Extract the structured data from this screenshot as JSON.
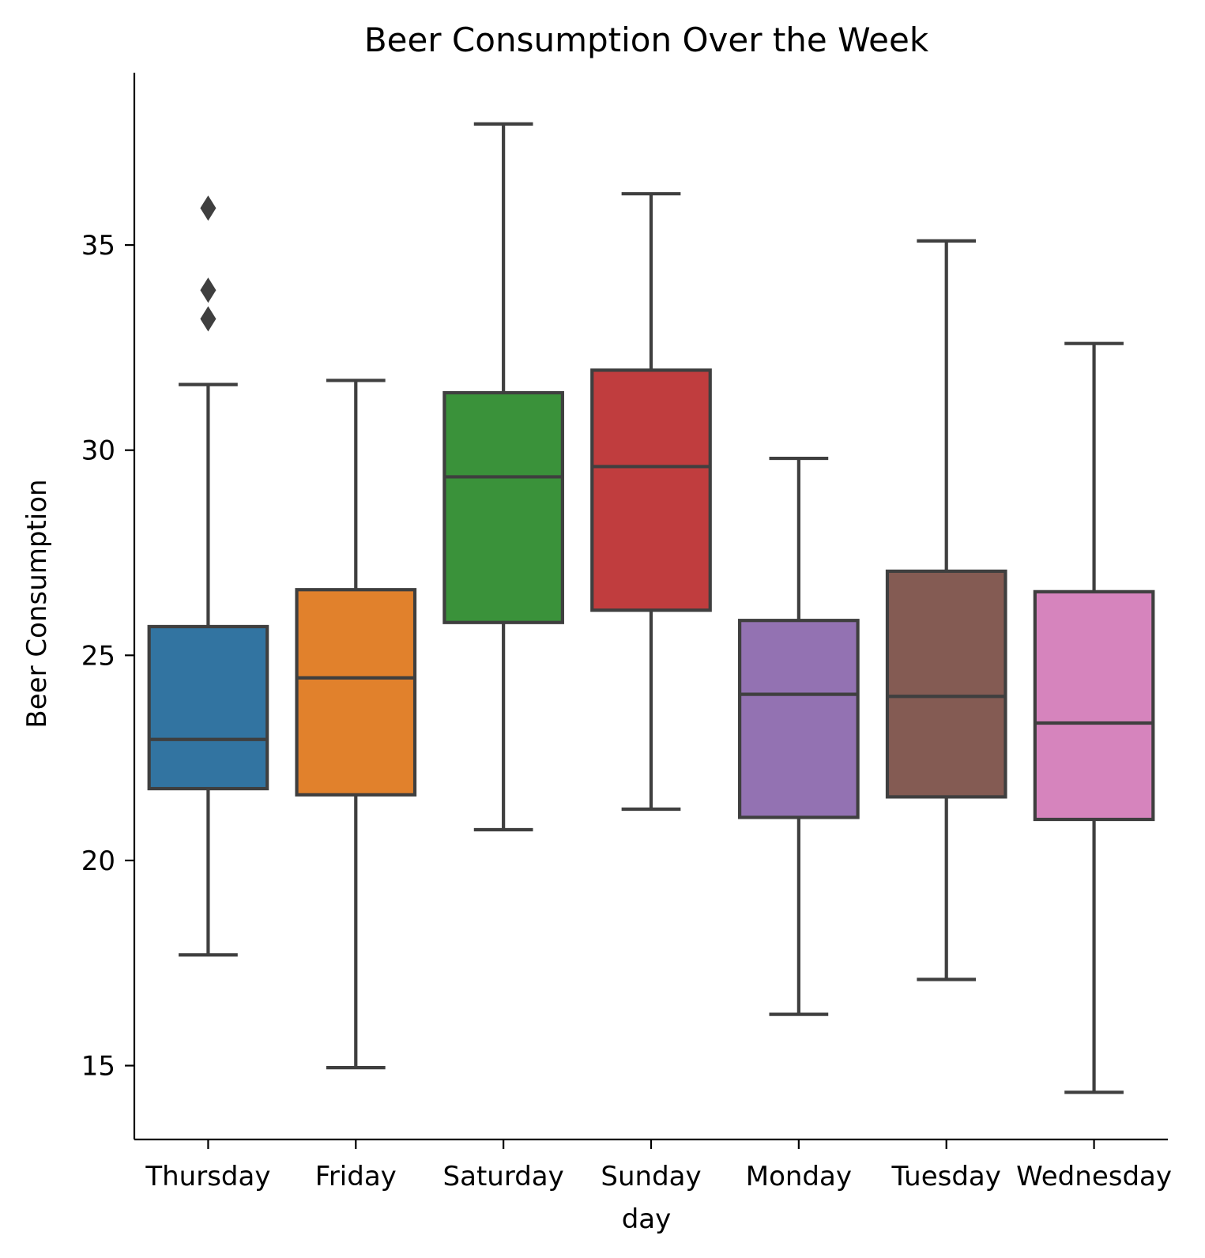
{
  "chart_data": {
    "type": "box",
    "title": "Beer Consumption Over the Week",
    "xlabel": "day",
    "ylabel": "Beer Consumption",
    "ylim": [
      13.2,
      39.2
    ],
    "yticks": [
      15,
      20,
      25,
      30,
      35
    ],
    "grid": false,
    "line_color": "#3f3f3f",
    "categories": [
      "Thursday",
      "Friday",
      "Saturday",
      "Sunday",
      "Monday",
      "Tuesday",
      "Wednesday"
    ],
    "boxes": [
      {
        "category": "Thursday",
        "color": "#3274a1",
        "whisker_low": 17.7,
        "q1": 21.75,
        "median": 22.95,
        "q3": 25.7,
        "whisker_high": 31.6,
        "outliers": [
          33.2,
          33.9,
          35.9
        ]
      },
      {
        "category": "Friday",
        "color": "#e1812c",
        "whisker_low": 14.95,
        "q1": 21.6,
        "median": 24.45,
        "q3": 26.6,
        "whisker_high": 31.7,
        "outliers": []
      },
      {
        "category": "Saturday",
        "color": "#3a923a",
        "whisker_low": 20.75,
        "q1": 25.8,
        "median": 29.35,
        "q3": 31.4,
        "whisker_high": 37.95,
        "outliers": []
      },
      {
        "category": "Sunday",
        "color": "#c03d3e",
        "whisker_low": 21.25,
        "q1": 26.1,
        "median": 29.6,
        "q3": 31.95,
        "whisker_high": 36.25,
        "outliers": []
      },
      {
        "category": "Monday",
        "color": "#9372b2",
        "whisker_low": 16.25,
        "q1": 21.05,
        "median": 24.05,
        "q3": 25.85,
        "whisker_high": 29.8,
        "outliers": []
      },
      {
        "category": "Tuesday",
        "color": "#845b53",
        "whisker_low": 17.1,
        "q1": 21.55,
        "median": 24.0,
        "q3": 27.05,
        "whisker_high": 35.1,
        "outliers": []
      },
      {
        "category": "Wednesday",
        "color": "#d684bd",
        "whisker_low": 14.35,
        "q1": 21.0,
        "median": 23.35,
        "q3": 26.55,
        "whisker_high": 32.6,
        "outliers": []
      }
    ]
  }
}
